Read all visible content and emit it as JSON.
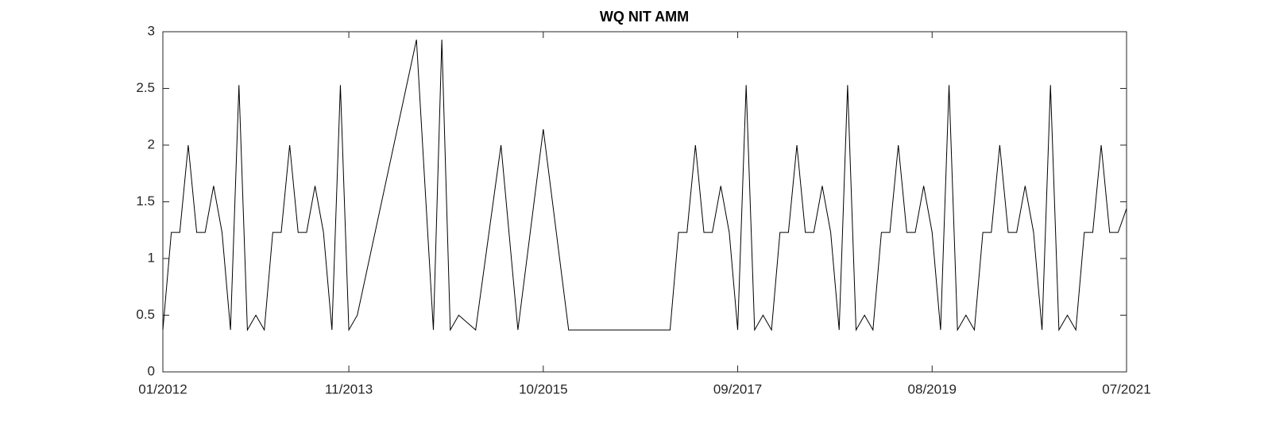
{
  "chart_data": {
    "type": "line",
    "title": "WQ NIT AMM",
    "x": [
      "01/2012",
      "02/2012",
      "03/2012",
      "04/2012",
      "05/2012",
      "06/2012",
      "07/2012",
      "08/2012",
      "09/2012",
      "10/2012",
      "11/2012",
      "12/2012",
      "01/2013",
      "02/2013",
      "03/2013",
      "04/2013",
      "05/2013",
      "06/2013",
      "07/2013",
      "08/2013",
      "09/2013",
      "10/2013",
      "11/2013",
      "12/2013",
      "07/2014",
      "09/2014",
      "10/2014",
      "11/2014",
      "12/2014",
      "02/2015",
      "05/2015",
      "07/2015",
      "10/2015",
      "01/2016",
      "01/2017",
      "02/2017",
      "03/2017",
      "04/2017",
      "05/2017",
      "06/2017",
      "07/2017",
      "08/2017",
      "09/2017",
      "10/2017",
      "11/2017",
      "12/2017",
      "01/2018",
      "02/2018",
      "03/2018",
      "04/2018",
      "05/2018",
      "06/2018",
      "07/2018",
      "08/2018",
      "09/2018",
      "10/2018",
      "11/2018",
      "12/2018",
      "01/2019",
      "02/2019",
      "03/2019",
      "04/2019",
      "05/2019",
      "06/2019",
      "07/2019",
      "08/2019",
      "09/2019",
      "10/2019",
      "11/2019",
      "12/2019",
      "01/2020",
      "02/2020",
      "03/2020",
      "04/2020",
      "05/2020",
      "06/2020",
      "07/2020",
      "08/2020",
      "09/2020",
      "10/2020",
      "11/2020",
      "12/2020",
      "01/2021",
      "02/2021",
      "03/2021",
      "04/2021",
      "05/2021",
      "06/2021",
      "07/2021"
    ],
    "series": [
      {
        "name": "WQ NIT AMM",
        "color": "#000000",
        "values": [
          0.37,
          1.23,
          1.23,
          2.0,
          1.23,
          1.23,
          1.64,
          1.23,
          0.37,
          2.53,
          0.37,
          0.5,
          0.37,
          1.23,
          1.23,
          2.0,
          1.23,
          1.23,
          1.64,
          1.23,
          0.37,
          2.53,
          0.37,
          0.5,
          2.93,
          0.37,
          2.93,
          0.37,
          0.5,
          0.37,
          2.0,
          0.37,
          2.14,
          0.37,
          0.37,
          1.23,
          1.23,
          2.0,
          1.23,
          1.23,
          1.64,
          1.23,
          0.37,
          2.53,
          0.37,
          0.5,
          0.37,
          1.23,
          1.23,
          2.0,
          1.23,
          1.23,
          1.64,
          1.23,
          0.37,
          2.53,
          0.37,
          0.5,
          0.37,
          1.23,
          1.23,
          2.0,
          1.23,
          1.23,
          1.64,
          1.23,
          0.37,
          2.53,
          0.37,
          0.5,
          0.37,
          1.23,
          1.23,
          2.0,
          1.23,
          1.23,
          1.64,
          1.23,
          0.37,
          2.53,
          0.37,
          0.5,
          0.37,
          1.23,
          1.23,
          2.0,
          1.23,
          1.23,
          1.44
        ]
      }
    ],
    "xlim": [
      "01/2012",
      "07/2021"
    ],
    "xticks": [
      "01/2012",
      "11/2013",
      "10/2015",
      "09/2017",
      "08/2019",
      "07/2021"
    ],
    "ylim": [
      0,
      3
    ],
    "yticks": [
      0,
      0.5,
      1,
      1.5,
      2,
      2.5,
      3
    ],
    "grid": false
  }
}
